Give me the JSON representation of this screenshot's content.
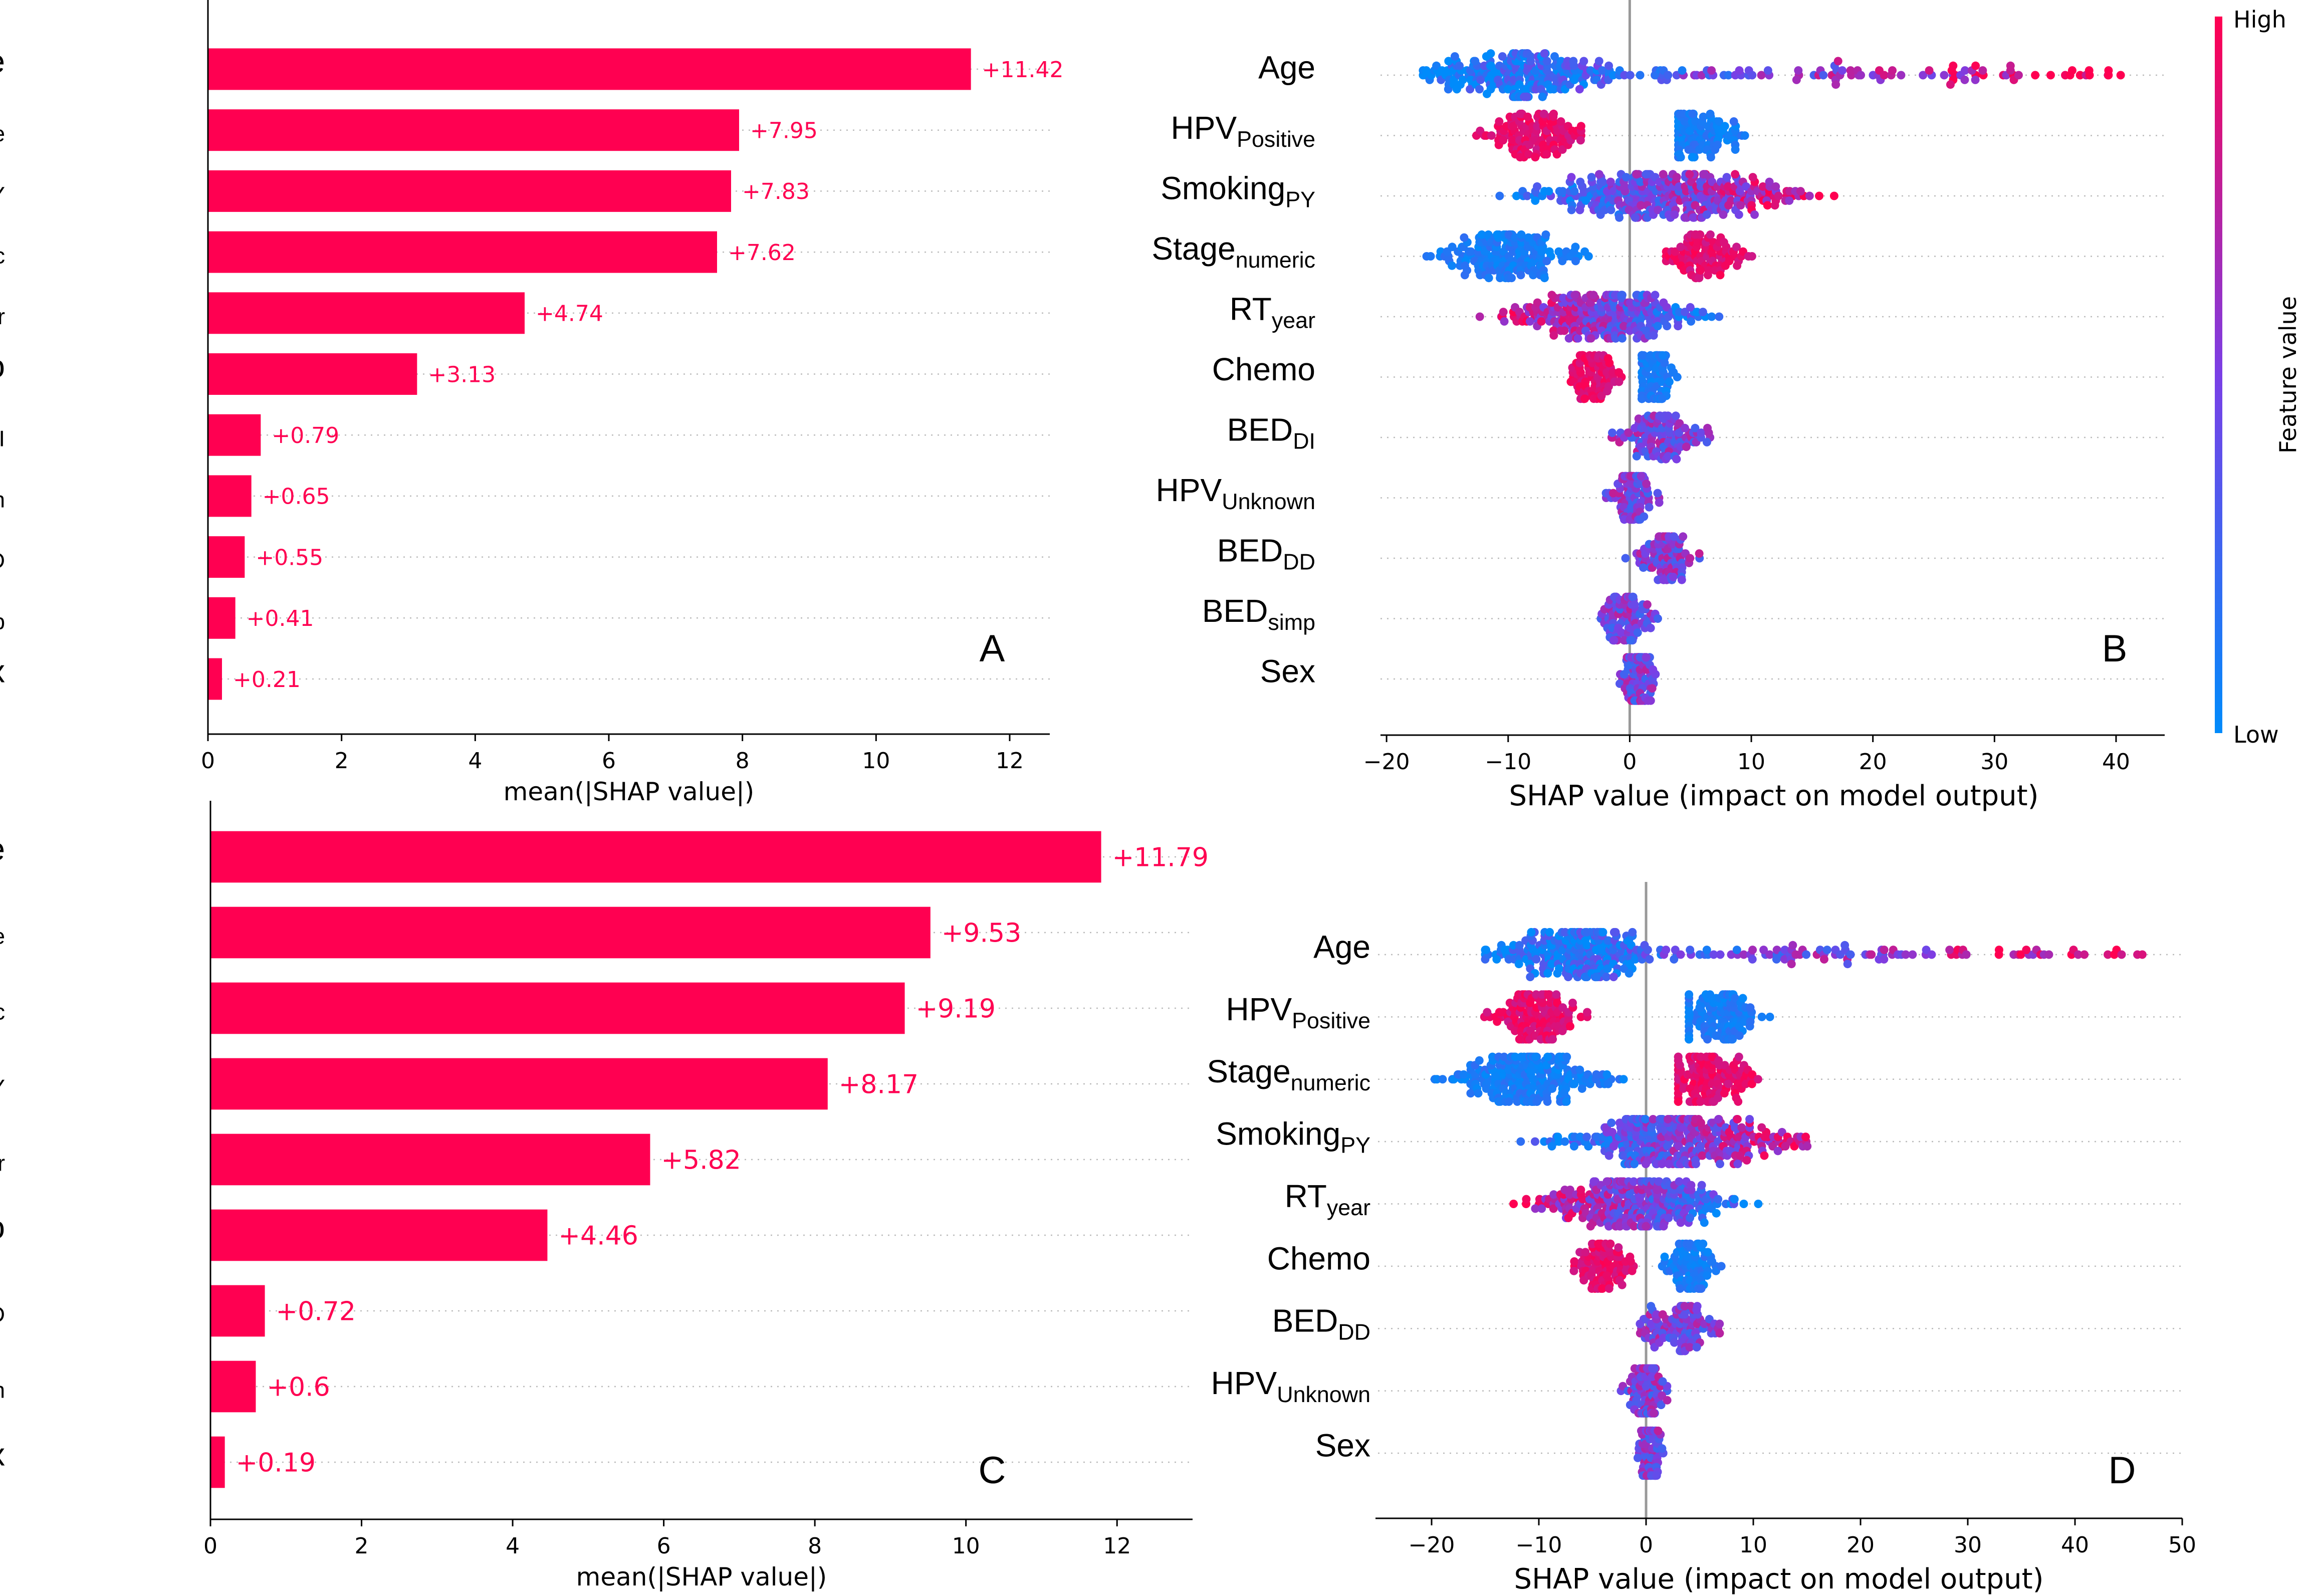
{
  "chart_data": [
    {
      "panel": "A",
      "type": "bar",
      "orientation": "horizontal",
      "xlabel": "mean(|SHAP value|)",
      "xlim": [
        0,
        12.6
      ],
      "xticks": [
        0,
        2,
        4,
        6,
        8,
        10,
        12
      ],
      "bar_color": "#ff0051",
      "features": [
        {
          "name": "Age",
          "sub": "",
          "value": 11.42,
          "label": "+11.42"
        },
        {
          "name": "HPV",
          "sub": "Positive",
          "value": 7.95,
          "label": "+7.95"
        },
        {
          "name": "Smoking",
          "sub": "PY",
          "value": 7.83,
          "label": "+7.83"
        },
        {
          "name": "Stage",
          "sub": "numeric",
          "value": 7.62,
          "label": "+7.62"
        },
        {
          "name": "RT",
          "sub": "year",
          "value": 4.74,
          "label": "+4.74"
        },
        {
          "name": "Chemo",
          "sub": "",
          "value": 3.13,
          "label": "+3.13"
        },
        {
          "name": "BED",
          "sub": "DI",
          "value": 0.79,
          "label": "+0.79"
        },
        {
          "name": "HPV",
          "sub": "Unknown",
          "value": 0.65,
          "label": "+0.65"
        },
        {
          "name": "BED",
          "sub": "DD",
          "value": 0.55,
          "label": "+0.55"
        },
        {
          "name": "BED",
          "sub": "simp",
          "value": 0.41,
          "label": "+0.41"
        },
        {
          "name": "Sex",
          "sub": "",
          "value": 0.21,
          "label": "+0.21"
        }
      ]
    },
    {
      "panel": "B",
      "type": "scatter",
      "subtype": "shap-beeswarm",
      "xlabel": "SHAP value (impact on model output)",
      "xlim": [
        -20.5,
        44
      ],
      "xticks": [
        -20,
        -10,
        0,
        10,
        20,
        30,
        40
      ],
      "colorbar": {
        "label": "Feature value",
        "high": "High",
        "low": "Low",
        "low_color": "#008bfb",
        "high_color": "#ff0051"
      },
      "features": [
        {
          "name": "Age",
          "sub": "",
          "shap_range": [
            -17,
            41
          ],
          "low_at": "negative",
          "spread": "long-tail"
        },
        {
          "name": "HPV",
          "sub": "Positive",
          "clusters": [
            {
              "center": -8,
              "range": [
                -15,
                -4
              ],
              "feature": "high"
            },
            {
              "center": 6,
              "range": [
                4,
                13
              ],
              "feature": "low"
            }
          ]
        },
        {
          "name": "Smoking",
          "sub": "PY",
          "shap_range": [
            -13,
            19
          ],
          "low_at": "negative"
        },
        {
          "name": "Stage",
          "sub": "numeric",
          "clusters": [
            {
              "center": -10,
              "range": [
                -18,
                -2
              ],
              "feature": "low"
            },
            {
              "center": 6,
              "range": [
                3,
                12
              ],
              "feature": "high"
            }
          ]
        },
        {
          "name": "RT",
          "sub": "year",
          "shap_range": [
            -14,
            10
          ],
          "low_at": "positive"
        },
        {
          "name": "Chemo",
          "sub": "",
          "clusters": [
            {
              "center": -3,
              "range": [
                -6.5,
                0
              ],
              "feature": "high"
            },
            {
              "center": 2,
              "range": [
                1,
                6.5
              ],
              "feature": "low"
            }
          ]
        },
        {
          "name": "BED",
          "sub": "DI",
          "shap_range": [
            -2.5,
            8
          ]
        },
        {
          "name": "HPV",
          "sub": "Unknown",
          "shap_range": [
            -2.5,
            3
          ]
        },
        {
          "name": "BED",
          "sub": "DD",
          "shap_range": [
            -1,
            6.5
          ]
        },
        {
          "name": "BED",
          "sub": "simp",
          "shap_range": [
            -3.5,
            3
          ]
        },
        {
          "name": "Sex",
          "sub": "",
          "shap_range": [
            -1,
            2.5
          ]
        }
      ]
    },
    {
      "panel": "C",
      "type": "bar",
      "orientation": "horizontal",
      "xlabel": "mean(|SHAP value|)",
      "xlim": [
        0,
        13
      ],
      "xticks": [
        0,
        2,
        4,
        6,
        8,
        10,
        12
      ],
      "bar_color": "#ff0051",
      "features": [
        {
          "name": "Age",
          "sub": "",
          "value": 11.79,
          "label": "+11.79"
        },
        {
          "name": "HPV",
          "sub": "Positive",
          "value": 9.53,
          "label": "+9.53"
        },
        {
          "name": "Stage",
          "sub": "numeric",
          "value": 9.19,
          "label": "+9.19"
        },
        {
          "name": "Smoking",
          "sub": "PY",
          "value": 8.17,
          "label": "+8.17"
        },
        {
          "name": "RT",
          "sub": "year",
          "value": 5.82,
          "label": "+5.82"
        },
        {
          "name": "Chemo",
          "sub": "",
          "value": 4.46,
          "label": "+4.46"
        },
        {
          "name": "BED",
          "sub": "DD",
          "value": 0.72,
          "label": "+0.72"
        },
        {
          "name": "HPV",
          "sub": "Unknown",
          "value": 0.6,
          "label": "+0.6"
        },
        {
          "name": "Sex",
          "sub": "",
          "value": 0.19,
          "label": "+0.19"
        }
      ]
    },
    {
      "panel": "D",
      "type": "scatter",
      "subtype": "shap-beeswarm",
      "xlabel": "SHAP value (impact on model output)",
      "xlim": [
        -25,
        50
      ],
      "xticks": [
        -20,
        -10,
        0,
        10,
        20,
        30,
        40,
        50
      ],
      "features": [
        {
          "name": "Age",
          "sub": "",
          "shap_range": [
            -15,
            47
          ],
          "low_at": "negative",
          "spread": "long-tail"
        },
        {
          "name": "HPV",
          "sub": "Positive",
          "clusters": [
            {
              "center": -10,
              "range": [
                -17,
                -4.5
              ],
              "feature": "high"
            },
            {
              "center": 7,
              "range": [
                4,
                15
              ],
              "feature": "low"
            }
          ]
        },
        {
          "name": "Stage",
          "sub": "numeric",
          "clusters": [
            {
              "center": -11,
              "range": [
                -22,
                -1.5
              ],
              "feature": "low"
            },
            {
              "center": 6,
              "range": [
                3,
                15.5
              ],
              "feature": "high"
            }
          ]
        },
        {
          "name": "Smoking",
          "sub": "PY",
          "shap_range": [
            -13,
            19
          ],
          "low_at": "negative"
        },
        {
          "name": "RT",
          "sub": "year",
          "shap_range": [
            -14,
            12
          ],
          "low_at": "positive"
        },
        {
          "name": "Chemo",
          "sub": "",
          "clusters": [
            {
              "center": -4,
              "range": [
                -8.5,
                -1
              ],
              "feature": "high"
            },
            {
              "center": 4,
              "range": [
                1.5,
                8.5
              ],
              "feature": "low"
            }
          ]
        },
        {
          "name": "BED",
          "sub": "DD",
          "shap_range": [
            -2,
            8
          ]
        },
        {
          "name": "HPV",
          "sub": "Unknown",
          "shap_range": [
            -3,
            3
          ]
        },
        {
          "name": "Sex",
          "sub": "",
          "shap_range": [
            -1,
            2
          ]
        }
      ]
    }
  ]
}
